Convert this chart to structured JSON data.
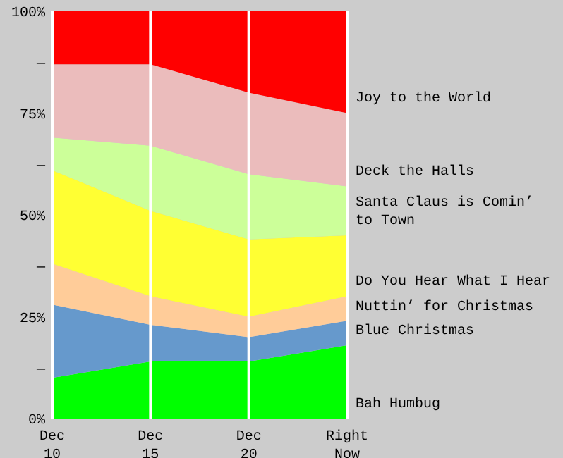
{
  "chart_data": {
    "type": "area",
    "stacked": true,
    "categories": [
      "Dec 10",
      "Dec 15",
      "Dec 20",
      "Right Now"
    ],
    "series": [
      {
        "name": "Bah Humbug",
        "color": "#00ff00",
        "values": [
          10,
          14,
          14,
          18
        ]
      },
      {
        "name": "Blue Christmas",
        "color": "#6699cc",
        "values": [
          18,
          9,
          6,
          6
        ]
      },
      {
        "name": "Nuttin’ for Christmas",
        "color": "#ffcc99",
        "values": [
          10,
          7,
          5,
          6
        ]
      },
      {
        "name": "Do You Hear What I Hear",
        "color": "#ffff33",
        "values": [
          23,
          21,
          19,
          15
        ]
      },
      {
        "name": "Santa Claus is Comin’ to Town",
        "color": "#ccff99",
        "values": [
          8,
          16,
          16,
          12
        ]
      },
      {
        "name": "Deck the Halls",
        "color": "#ebbcbc",
        "values": [
          18,
          20,
          20,
          18
        ]
      },
      {
        "name": "Joy to the World",
        "color": "#ff0000",
        "values": [
          13,
          13,
          20,
          25
        ]
      }
    ],
    "ylim": [
      0,
      100
    ],
    "yticks": [
      {
        "value": 0,
        "label": "0%"
      },
      {
        "value": 12.5,
        "label": "—"
      },
      {
        "value": 25,
        "label": "25%"
      },
      {
        "value": 37.5,
        "label": "—"
      },
      {
        "value": 50,
        "label": "50%"
      },
      {
        "value": 62.5,
        "label": "—"
      },
      {
        "value": 75,
        "label": "75%"
      },
      {
        "value": 87.5,
        "label": "—"
      },
      {
        "value": 100,
        "label": "100%"
      }
    ],
    "grid": "x",
    "legend": false
  }
}
